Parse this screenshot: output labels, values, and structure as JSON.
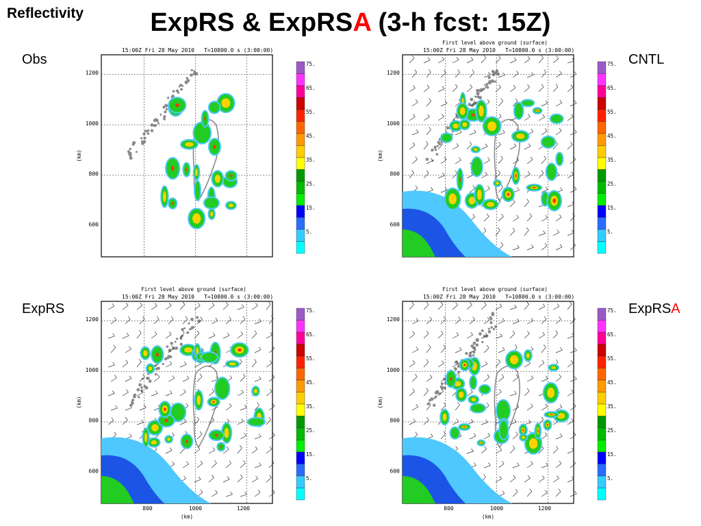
{
  "header": {
    "corner_label": "Reflectivity",
    "title_main": "ExpRS & ExpRS",
    "title_accent": "A",
    "title_tail": " (3-h fcst: 15Z)",
    "accent_color": "#ff0000"
  },
  "panels": [
    {
      "key": "obs",
      "label": "Obs",
      "label_accent": "",
      "subtitle": "",
      "timestamp": "15:00Z Fri 28 May 2010",
      "timer": "T=10800.0 s (3:00:00)",
      "y_ticks": [
        "1200",
        "1000",
        "800",
        "600"
      ],
      "x_ticks": [],
      "y_unit": "(km)",
      "x_unit": "",
      "has_wind_barbs": false
    },
    {
      "key": "cntl",
      "label": "CNTL",
      "label_accent": "",
      "subtitle": "First level above ground (surface)",
      "timestamp": "15:00Z Fri 28 May 2010",
      "timer": "T=10800.0 s (3:00:00)",
      "y_ticks": [
        "1200",
        "1000",
        "800",
        "600"
      ],
      "x_ticks": [],
      "y_unit": "(km)",
      "x_unit": "",
      "has_wind_barbs": true
    },
    {
      "key": "exprs",
      "label": "ExpRS",
      "label_accent": "",
      "subtitle": "First level above ground (surface)",
      "timestamp": "15:00Z Fri 28 May 2010",
      "timer": "T=10800.0 s (3:00:00)",
      "y_ticks": [
        "1200",
        "1000",
        "800",
        "600"
      ],
      "x_ticks": [
        "800",
        "1000",
        "1200"
      ],
      "y_unit": "(km)",
      "x_unit": "(km)",
      "has_wind_barbs": true
    },
    {
      "key": "exprsa",
      "label": "ExpRS",
      "label_accent": "A",
      "subtitle": "First level above ground (surface)",
      "timestamp": "15:00Z Fri 28 May 2010",
      "timer": "T=10800.0 s (3:00:00)",
      "y_ticks": [
        "1200",
        "1000",
        "800",
        "600"
      ],
      "x_ticks": [
        "800",
        "1000",
        "1200"
      ],
      "y_unit": "(km)",
      "x_unit": "(km)",
      "has_wind_barbs": true
    }
  ],
  "colorbar": {
    "labels": [
      "75.",
      "65.",
      "55.",
      "45.",
      "35.",
      "25.",
      "15.",
      "5."
    ],
    "colors": [
      "#9b59c6",
      "#ff33ff",
      "#ff0099",
      "#cc0000",
      "#ff2200",
      "#ff6600",
      "#ff9900",
      "#ffcc00",
      "#ffff00",
      "#009900",
      "#00bb00",
      "#00ee00",
      "#0000ff",
      "#2a6cff",
      "#33ccff",
      "#00ffff"
    ]
  },
  "field_colors": {
    "light_echo": "#4fc8ff",
    "medium_echo": "#1c55e6",
    "moderate": "#22cc22",
    "heavy": "#ffd200",
    "intense": "#ff3300",
    "coastline": "#8a8a8a"
  }
}
